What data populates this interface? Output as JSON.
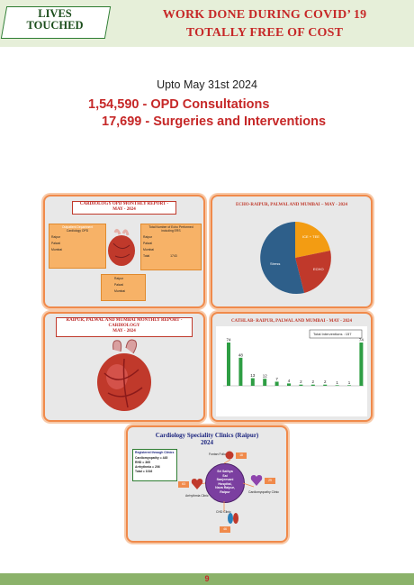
{
  "header": {
    "badge_line1": "LIVES",
    "badge_line2": "TOUCHED",
    "title_line1": "WORK DONE DURING COVID’ 19",
    "title_line2": "TOTALLY FREE OF COST"
  },
  "summary": {
    "date_line": "Upto May 31st 2024",
    "opd": "1,54,590 - OPD Consultations",
    "surgeries": "17,699 - Surgeries and Interventions"
  },
  "panels": {
    "opd_report": {
      "title_line1": "CARDIOLOGY OPD MONTHLY REPORT -",
      "title_line2": "MAY - 2024",
      "left_box_title1": "Outpatient Department",
      "left_box_title2": "Cardiology OPD",
      "left_rows": [
        "Raipur",
        "Palwal",
        "Mumbai"
      ],
      "right_box_title1": "Total Number of Echo Performed",
      "right_box_title2": "including ERS",
      "right_rows": [
        "Raipur",
        "Palwal",
        "Mumbai",
        "Total"
      ],
      "right_total": "1743",
      "legend": [
        "Raipur",
        "Palwal",
        "Mumbai"
      ]
    },
    "echo_report": {
      "title": "ECHO-RAIPUR, PALWAL AND MUMBAI – MAY - 2024",
      "slice_label_1": "ICE + TEE",
      "slice_label_2": "ECHO",
      "slice_label_3": "Stress",
      "colors": [
        "#f39c12",
        "#c0392b",
        "#2e5f8a"
      ]
    },
    "monthly_report": {
      "title_line1": "RAIPUR, PALWAL AND MUMBAI MONTHLY REPORT -",
      "title_line2": "CARDIOLOGY",
      "title_line3": "MAY - 2024"
    },
    "cathlab_report": {
      "title": "CATHLAB- RAIPUR, PALWAL AND MUMBAI - MAY - 2024",
      "total_box": "Total Interventions : 157",
      "value_labels": [
        "74",
        "48",
        "13",
        "12",
        "7",
        "4",
        "2",
        "2",
        "2",
        "1",
        "1",
        "74"
      ],
      "bar_values": [
        74,
        48,
        13,
        12,
        7,
        4,
        2,
        2,
        2,
        1,
        1,
        74
      ],
      "bar_color": "#2e9e44"
    },
    "speciality_clinics": {
      "title_line1": "Cardiology Speciality Clinics (Raipur)",
      "title_line2": "2024",
      "registered_title": "Registered through Clinics",
      "registered_rows": [
        "Cardiomyopathy = 445",
        "RHD = 365",
        "Arrhythmia = 206",
        "Total = 1016"
      ],
      "center_text_lines": [
        "Sri Sathya",
        "Sai",
        "Sanjeevani",
        "Hospital,",
        "Nava Raipur,",
        "Raipur"
      ],
      "nodes": [
        {
          "label": "Fontan Follow-Up",
          "count": "18"
        },
        {
          "label": "Cardiomyopathy Clinic",
          "count": "29"
        },
        {
          "label": "CHD Clinic",
          "count": "46"
        },
        {
          "label": "Arrhythmia Clinic",
          "count": "63"
        }
      ]
    }
  },
  "footer": {
    "page_number": "9"
  }
}
